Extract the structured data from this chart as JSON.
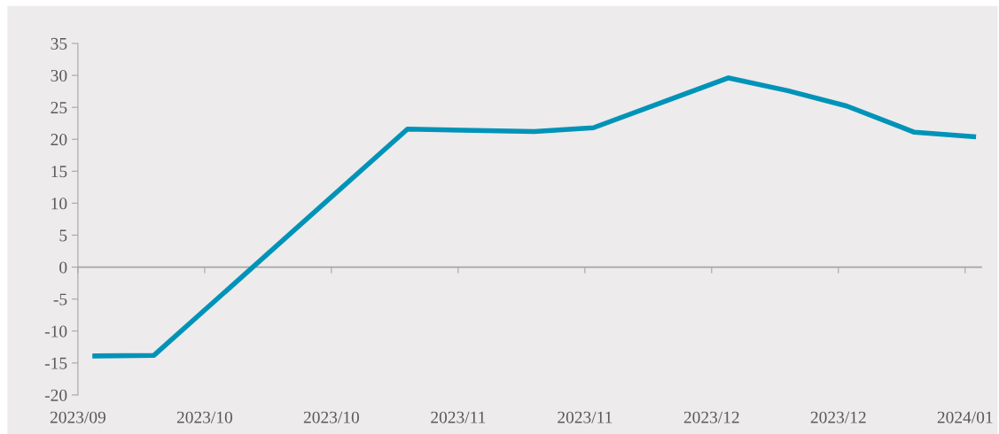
{
  "chart_data": {
    "type": "line",
    "x": [
      "2023-09-27",
      "2023-10-04",
      "2023-11-03",
      "2023-11-18",
      "2023-11-25",
      "2023-12-11",
      "2023-12-18",
      "2023-12-25",
      "2024-01-02",
      "2024-01-09"
    ],
    "series": [
      {
        "color": "#0093b8",
        "values": [
          -13.9,
          -13.8,
          21.6,
          21.2,
          21.8,
          29.6,
          27.6,
          25.2,
          21.1,
          20.4
        ]
      }
    ],
    "xlim": [
      "2023-09-25",
      "2024-01-10"
    ],
    "xticks": [
      {
        "value": "2023-09-25",
        "label": "2023/09"
      },
      {
        "value": "2023-10-10",
        "label": "2023/10"
      },
      {
        "value": "2023-10-25",
        "label": "2023/10"
      },
      {
        "value": "2023-11-09",
        "label": "2023/11"
      },
      {
        "value": "2023-11-24",
        "label": "2023/11"
      },
      {
        "value": "2023-12-09",
        "label": "2023/12"
      },
      {
        "value": "2023-12-24",
        "label": "2023/12"
      },
      {
        "value": "2024-01-08",
        "label": "2024/01"
      }
    ],
    "ylim": [
      -20,
      35
    ],
    "yticks": [
      -20,
      -15,
      -10,
      -5,
      0,
      5,
      10,
      15,
      20,
      25,
      30,
      35
    ],
    "ref_lines": [
      {
        "axis": "y",
        "value": 0,
        "color": "#a6a6a6"
      }
    ],
    "grid": false,
    "legend": false,
    "marker": "none",
    "line_style": "solid"
  }
}
